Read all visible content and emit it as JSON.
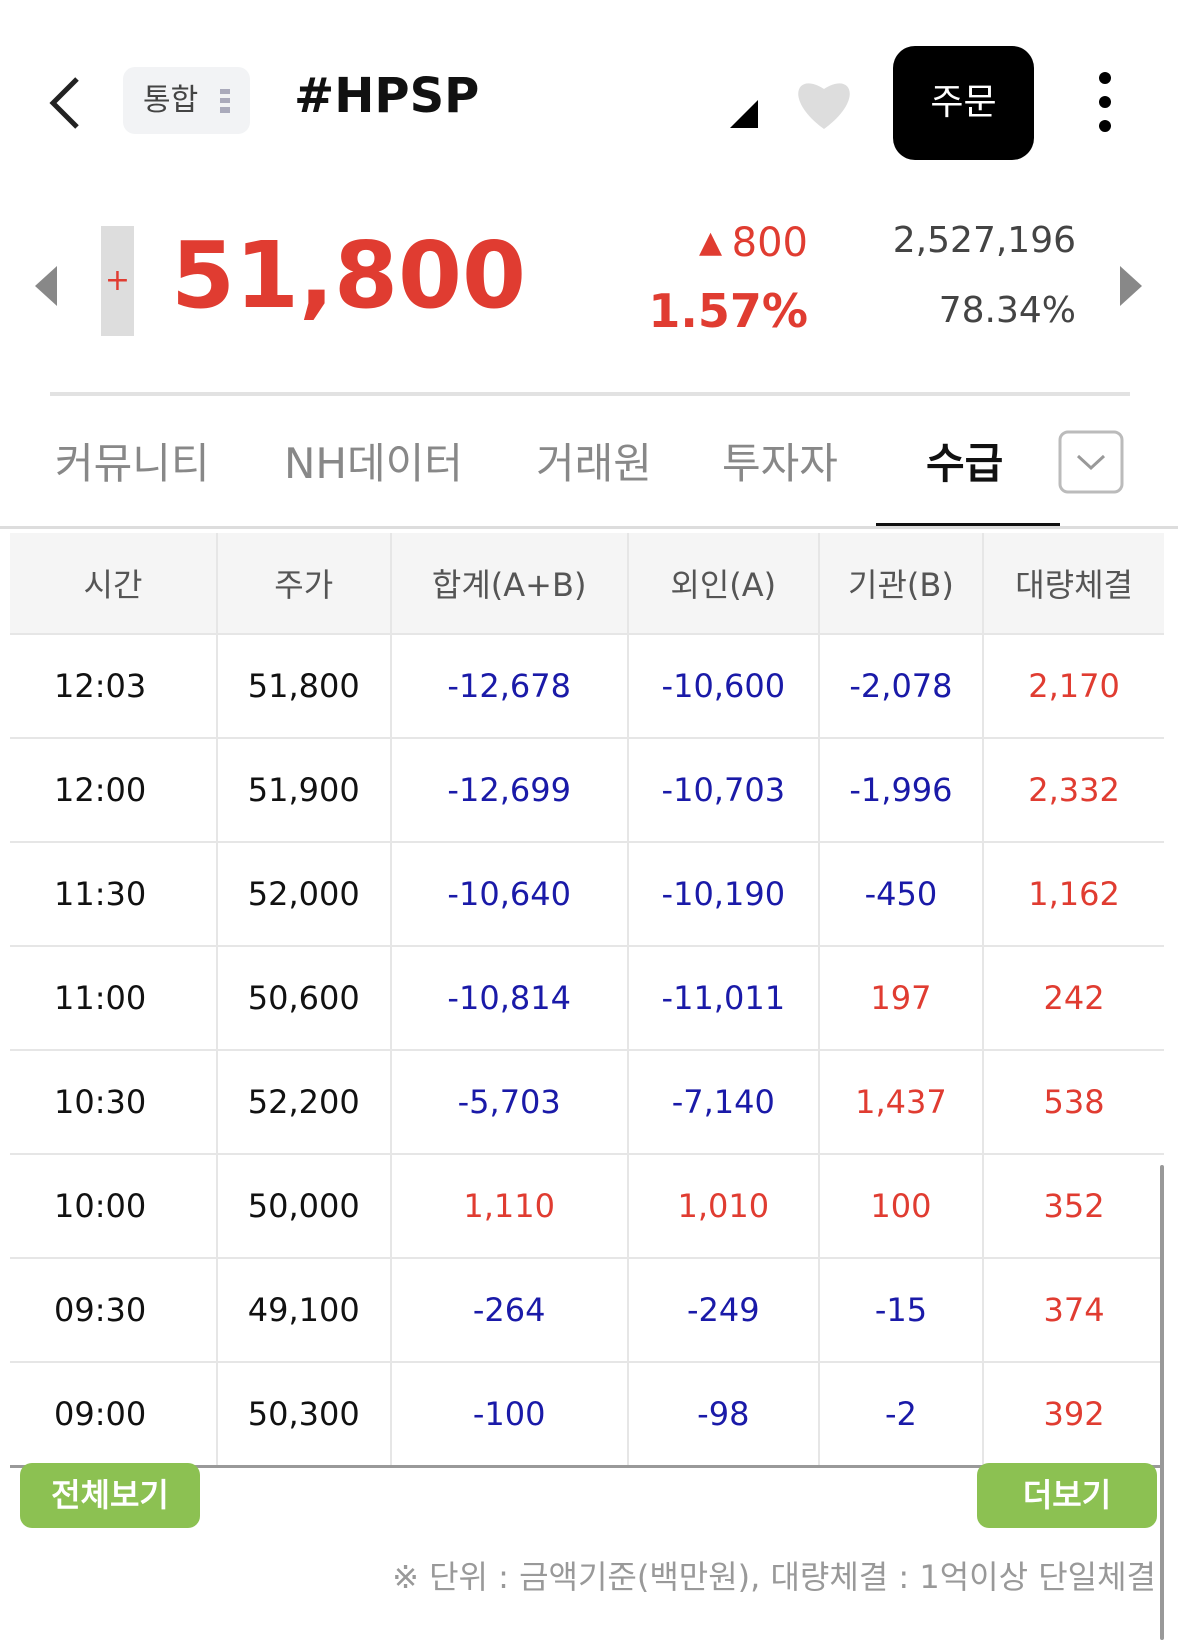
{
  "header": {
    "search_tag": "통합",
    "title": "#HPSP",
    "order_button": "주문"
  },
  "quote": {
    "sign": "+",
    "price": "51,800",
    "change": "800",
    "change_pct": "1.57%",
    "volume": "2,527,196",
    "ratio": "78.34%"
  },
  "tabs": {
    "items": [
      "커뮤니티",
      "NH데이터",
      "거래원",
      "투자자",
      "수급"
    ],
    "active": 4
  },
  "table": {
    "headers": [
      "시간",
      "주가",
      "합계(A+B)",
      "외인(A)",
      "기관(B)",
      "대량체결"
    ],
    "rows": [
      [
        "12:03",
        "51,800",
        "-12,678",
        "-10,600",
        "-2,078",
        "2,170"
      ],
      [
        "12:00",
        "51,900",
        "-12,699",
        "-10,703",
        "-1,996",
        "2,332"
      ],
      [
        "11:30",
        "52,000",
        "-10,640",
        "-10,190",
        "-450",
        "1,162"
      ],
      [
        "11:00",
        "50,600",
        "-10,814",
        "-11,011",
        "197",
        "242"
      ],
      [
        "10:30",
        "52,200",
        "-5,703",
        "-7,140",
        "1,437",
        "538"
      ],
      [
        "10:00",
        "50,000",
        "1,110",
        "1,010",
        "100",
        "352"
      ],
      [
        "09:30",
        "49,100",
        "-264",
        "-249",
        "-15",
        "374"
      ],
      [
        "09:00",
        "50,300",
        "-100",
        "-98",
        "-2",
        "392"
      ]
    ]
  },
  "buttons": {
    "all": "전체보기",
    "more": "더보기"
  },
  "footnote": "※ 단위 : 금액기준(백만원), 대량체결 : 1억이상 단일체결"
}
